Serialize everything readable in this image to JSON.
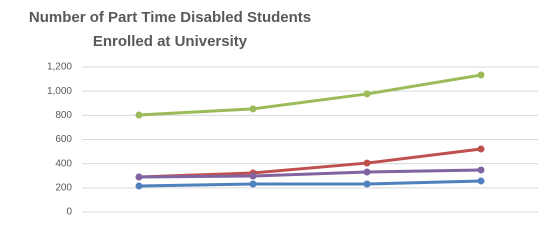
{
  "chart_data": {
    "type": "line",
    "title": "Number of Part Time Disabled Students Enrolled at University",
    "categories": [
      null,
      null,
      null,
      null
    ],
    "series": [
      {
        "color": "#9bbb59",
        "values": [
          803,
          853,
          977,
          1134
        ]
      },
      {
        "color": "#c0504d",
        "values": [
          290,
          323,
          405,
          521
        ]
      },
      {
        "color": "#8064a2",
        "values": [
          290,
          298,
          331,
          348
        ]
      },
      {
        "color": "#4f81bd",
        "values": [
          215,
          232,
          232,
          257
        ]
      }
    ],
    "ylim": [
      0,
      1200
    ],
    "yticks": [
      0,
      200,
      400,
      600,
      800,
      {
        "value": 1000,
        "label": "1,000"
      },
      {
        "value": 1200,
        "label": "1,200"
      }
    ],
    "grid": true
  }
}
